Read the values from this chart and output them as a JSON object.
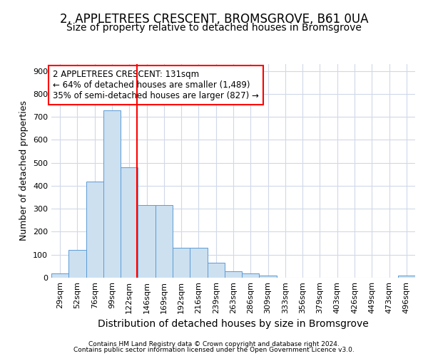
{
  "title": "2, APPLETREES CRESCENT, BROMSGROVE, B61 0UA",
  "subtitle": "Size of property relative to detached houses in Bromsgrove",
  "xlabel": "Distribution of detached houses by size in Bromsgrove",
  "ylabel": "Number of detached properties",
  "footer1": "Contains HM Land Registry data © Crown copyright and database right 2024.",
  "footer2": "Contains public sector information licensed under the Open Government Licence v3.0.",
  "annotation_line1": "2 APPLETREES CRESCENT: 131sqm",
  "annotation_line2": "← 64% of detached houses are smaller (1,489)",
  "annotation_line3": "35% of semi-detached houses are larger (827) →",
  "bar_color": "#cce0f0",
  "bar_edge_color": "#5b9bd5",
  "redline_x": 131,
  "categories": [
    "29sqm",
    "52sqm",
    "76sqm",
    "99sqm",
    "122sqm",
    "146sqm",
    "169sqm",
    "192sqm",
    "216sqm",
    "239sqm",
    "263sqm",
    "286sqm",
    "309sqm",
    "333sqm",
    "356sqm",
    "379sqm",
    "403sqm",
    "426sqm",
    "449sqm",
    "473sqm",
    "496sqm"
  ],
  "bin_edges": [
    17.5,
    40.5,
    63.5,
    86.5,
    109.5,
    132.5,
    155.5,
    178.5,
    201.5,
    224.5,
    247.5,
    270.5,
    293.5,
    316.5,
    339.5,
    362.5,
    385.5,
    408.5,
    431.5,
    454.5,
    477.5,
    500.5
  ],
  "values": [
    20,
    120,
    420,
    730,
    480,
    315,
    315,
    130,
    130,
    65,
    28,
    20,
    10,
    0,
    0,
    0,
    0,
    0,
    0,
    0,
    8
  ],
  "ylim": [
    0,
    930
  ],
  "yticks": [
    0,
    100,
    200,
    300,
    400,
    500,
    600,
    700,
    800,
    900
  ],
  "background_color": "#ffffff",
  "grid_color": "#d0d8e8",
  "title_fontsize": 12,
  "subtitle_fontsize": 10,
  "ylabel_fontsize": 9,
  "xlabel_fontsize": 10,
  "footer_fontsize": 6.5,
  "annot_fontsize": 8.5,
  "tick_fontsize": 8
}
